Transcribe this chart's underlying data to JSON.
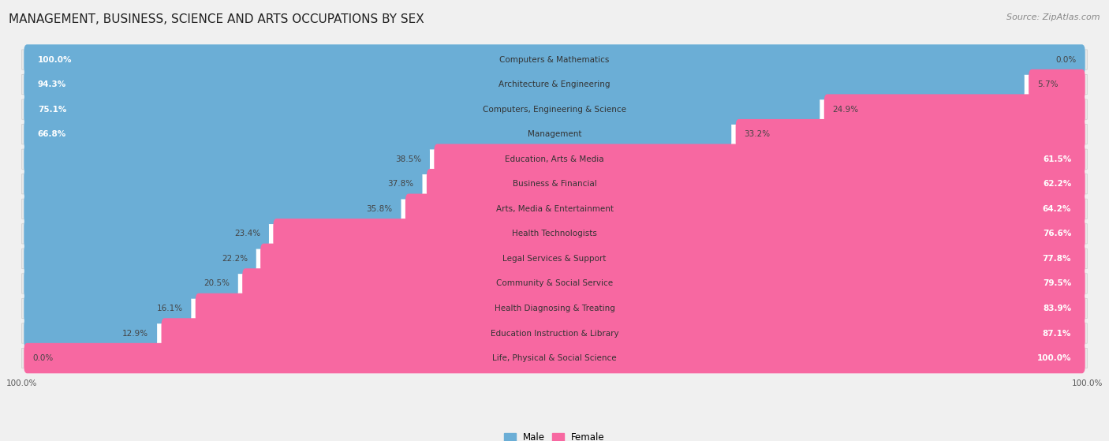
{
  "title": "MANAGEMENT, BUSINESS, SCIENCE AND ARTS OCCUPATIONS BY SEX",
  "source": "Source: ZipAtlas.com",
  "categories": [
    "Computers & Mathematics",
    "Architecture & Engineering",
    "Computers, Engineering & Science",
    "Management",
    "Education, Arts & Media",
    "Business & Financial",
    "Arts, Media & Entertainment",
    "Health Technologists",
    "Legal Services & Support",
    "Community & Social Service",
    "Health Diagnosing & Treating",
    "Education Instruction & Library",
    "Life, Physical & Social Science"
  ],
  "male": [
    100.0,
    94.3,
    75.1,
    66.8,
    38.5,
    37.8,
    35.8,
    23.4,
    22.2,
    20.5,
    16.1,
    12.9,
    0.0
  ],
  "female": [
    0.0,
    5.7,
    24.9,
    33.2,
    61.5,
    62.2,
    64.2,
    76.6,
    77.8,
    79.5,
    83.9,
    87.1,
    100.0
  ],
  "male_color": "#6baed6",
  "female_color": "#f768a1",
  "background_color": "#f0f0f0",
  "bar_bg_color": "#ffffff",
  "row_bg_color": "#e8e8e8",
  "title_fontsize": 11,
  "source_fontsize": 8,
  "label_fontsize": 7.5,
  "bar_height": 0.62,
  "legend_labels": [
    "Male",
    "Female"
  ],
  "total_width": 100.0
}
